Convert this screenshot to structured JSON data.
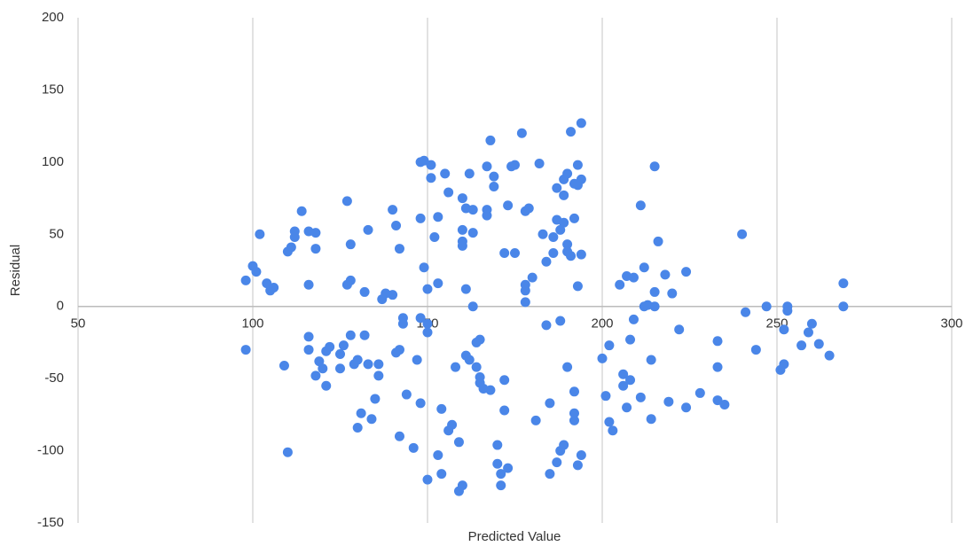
{
  "chart_data": {
    "type": "scatter",
    "xlabel": "Predicted Value",
    "ylabel": "Residual",
    "xlim": [
      50,
      300
    ],
    "xticks": [
      50,
      100,
      150,
      200,
      250,
      300
    ],
    "ylim": [
      -150,
      200
    ],
    "yticks": [
      -150,
      -100,
      -50,
      0,
      50,
      100,
      150,
      200
    ],
    "grid": true,
    "color": "#4a86e8",
    "x": [
      98,
      98,
      100,
      101,
      102,
      104,
      105,
      106,
      109,
      110,
      110,
      111,
      112,
      112,
      114,
      116,
      116,
      116,
      116,
      118,
      118,
      118,
      119,
      120,
      121,
      121,
      122,
      125,
      125,
      126,
      127,
      127,
      128,
      128,
      128,
      129,
      130,
      130,
      131,
      132,
      132,
      133,
      133,
      134,
      135,
      136,
      136,
      137,
      138,
      140,
      140,
      141,
      141,
      142,
      142,
      142,
      143,
      143,
      144,
      146,
      147,
      148,
      148,
      148,
      148,
      149,
      149,
      150,
      150,
      150,
      150,
      151,
      151,
      152,
      153,
      153,
      153,
      154,
      154,
      155,
      156,
      156,
      157,
      158,
      159,
      159,
      160,
      160,
      160,
      160,
      160,
      161,
      161,
      161,
      162,
      162,
      163,
      163,
      163,
      164,
      164,
      165,
      165,
      165,
      166,
      167,
      167,
      167,
      168,
      168,
      169,
      169,
      170,
      170,
      171,
      171,
      172,
      172,
      172,
      173,
      173,
      174,
      175,
      175,
      177,
      178,
      178,
      178,
      178,
      179,
      180,
      181,
      182,
      183,
      184,
      184,
      185,
      185,
      186,
      186,
      187,
      187,
      188,
      188,
      189,
      189,
      189,
      190,
      190,
      191,
      192,
      192,
      192,
      193,
      193,
      193,
      194,
      194,
      191,
      194,
      193,
      194,
      192,
      192,
      190,
      188,
      187,
      189,
      190,
      200,
      201,
      202,
      202,
      203,
      205,
      206,
      206,
      207,
      207,
      208,
      208,
      209,
      209,
      211,
      212,
      212,
      213,
      214,
      214,
      215,
      215,
      216,
      218,
      219,
      220,
      222,
      224,
      224,
      228,
      233,
      233,
      233,
      235,
      241,
      244,
      247,
      251,
      252,
      252,
      253,
      253,
      257,
      259,
      260,
      262,
      265,
      269,
      269,
      215,
      211,
      240
    ],
    "values": [
      18,
      -30,
      28,
      24,
      50,
      16,
      11,
      13,
      -41,
      -101,
      38,
      41,
      48,
      52,
      66,
      52,
      15,
      -21,
      -30,
      51,
      40,
      -48,
      -38,
      -43,
      -55,
      -31,
      -28,
      -43,
      -33,
      -27,
      15,
      73,
      18,
      -20,
      43,
      -40,
      -84,
      -37,
      -74,
      -20,
      10,
      53,
      -40,
      -78,
      -64,
      -40,
      -48,
      5,
      9,
      8,
      67,
      56,
      -32,
      -30,
      -90,
      40,
      -12,
      -8,
      -61,
      -98,
      -37,
      61,
      -8,
      -67,
      100,
      101,
      27,
      12,
      -120,
      -18,
      -12,
      89,
      98,
      48,
      -103,
      16,
      62,
      -71,
      -116,
      92,
      79,
      -86,
      -82,
      -42,
      -94,
      -128,
      -124,
      45,
      42,
      75,
      53,
      12,
      68,
      -34,
      -37,
      92,
      51,
      0,
      67,
      -25,
      -42,
      -49,
      -23,
      -53,
      -57,
      97,
      63,
      67,
      -58,
      115,
      90,
      83,
      -96,
      -109,
      -116,
      -124,
      -51,
      -72,
      37,
      -112,
      70,
      97,
      98,
      37,
      120,
      66,
      3,
      11,
      15,
      68,
      20,
      -79,
      99,
      50,
      31,
      -13,
      -116,
      -67,
      37,
      48,
      82,
      60,
      -10,
      53,
      77,
      88,
      58,
      43,
      92,
      35,
      -59,
      -79,
      -74,
      -110,
      84,
      14,
      -103,
      36,
      121,
      127,
      98,
      88,
      85,
      61,
      38,
      -100,
      -108,
      -96,
      -42,
      -36,
      -62,
      -80,
      -27,
      -86,
      15,
      -47,
      -55,
      21,
      -70,
      -51,
      -23,
      20,
      -9,
      -63,
      27,
      0,
      1,
      -37,
      -78,
      10,
      0,
      45,
      22,
      -66,
      9,
      -16,
      24,
      -70,
      -60,
      -24,
      -42,
      -65,
      -68,
      -4,
      -30,
      0,
      -44,
      -40,
      -16,
      0,
      -3,
      -27,
      -18,
      -12,
      -26,
      -34,
      16,
      0,
      97,
      70,
      50
    ]
  }
}
